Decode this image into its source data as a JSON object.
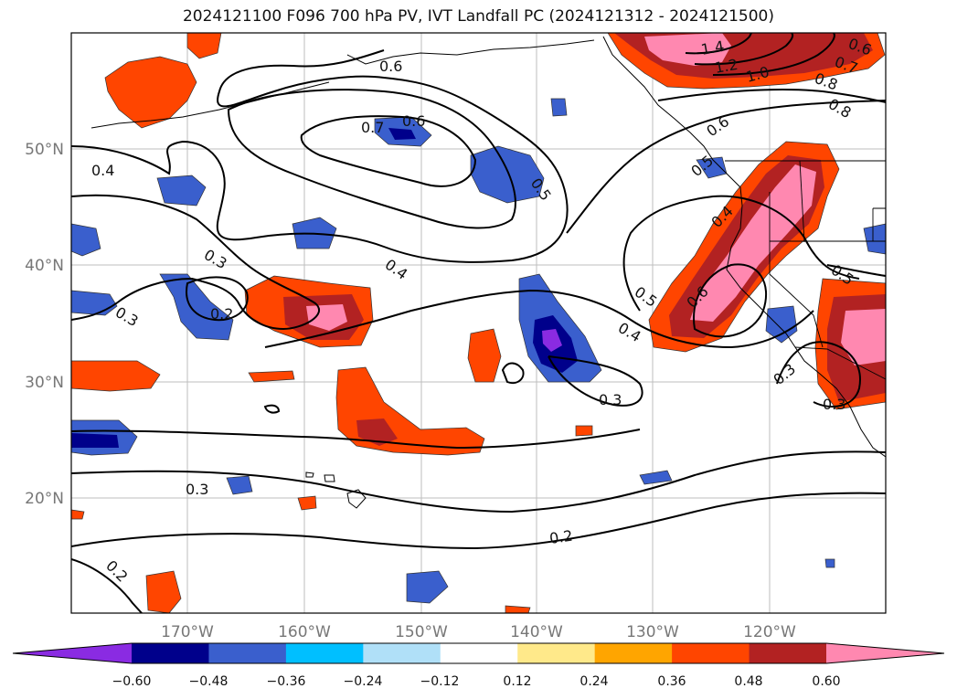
{
  "title": "2024121100 F096 700 hPa PV, IVT Landfall PC (2024121312 - 2024121500)",
  "lat_ticks": [
    "50°N",
    "40°N",
    "30°N",
    "20°N"
  ],
  "lon_ticks": [
    "170°W",
    "160°W",
    "150°W",
    "140°W",
    "130°W",
    "120°W"
  ],
  "colorbar": {
    "tick_labels": [
      "−0.60",
      "−0.48",
      "−0.36",
      "−0.24",
      "−0.12",
      "0.12",
      "0.24",
      "0.36",
      "0.48",
      "0.60"
    ],
    "colors": [
      "#8a2be2",
      "#00008b",
      "#3a5fcd",
      "#00bfff",
      "#b0e0f8",
      "#ffffff",
      "#ffe98a",
      "#ffa500",
      "#ff4500",
      "#b22222",
      "#ff88b0"
    ]
  },
  "contour_labels": [
    "0.4",
    "0.3",
    "0.3",
    "0.2",
    "0.3",
    "0.2",
    "0.7",
    "0.6",
    "0.5",
    "0.4",
    "0.4",
    "0.5",
    "0.3",
    "0.3",
    "0.2",
    "0.6",
    "0.6",
    "0.5",
    "0.4",
    "0.6",
    "0.5",
    "0.3",
    "1.4",
    "1.2",
    "1.0",
    "0.8",
    "0.8",
    "0.6",
    "0.7"
  ]
}
